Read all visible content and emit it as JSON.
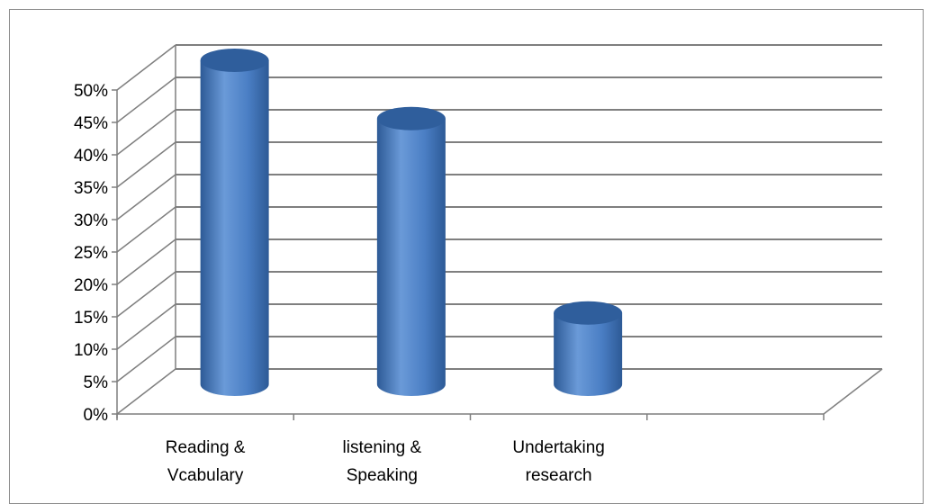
{
  "chart_data": {
    "type": "bar",
    "style": "3d-cylinder",
    "categories": [
      [
        "Reading &",
        "Vcabulary"
      ],
      [
        "listening &",
        "Speaking"
      ],
      [
        "Undertaking",
        "research"
      ],
      [
        ""
      ]
    ],
    "values": [
      50,
      41,
      11,
      null
    ],
    "ylim": [
      0,
      50
    ],
    "ytick_step": 5,
    "ytick_labels": [
      "0%",
      "5%",
      "10%",
      "15%",
      "20%",
      "25%",
      "30%",
      "35%",
      "40%",
      "45%",
      "50%"
    ],
    "grid": true,
    "legend": "none",
    "title": "",
    "xlabel": "",
    "ylabel": ""
  },
  "colors": {
    "bar_front": "#4a7ec4",
    "bar_light": "#6a9ad8",
    "bar_dark": "#2d5a96",
    "bar_top": "#2f5e9c",
    "grid": "#7f7f7f",
    "axis": "#7f7f7f"
  }
}
